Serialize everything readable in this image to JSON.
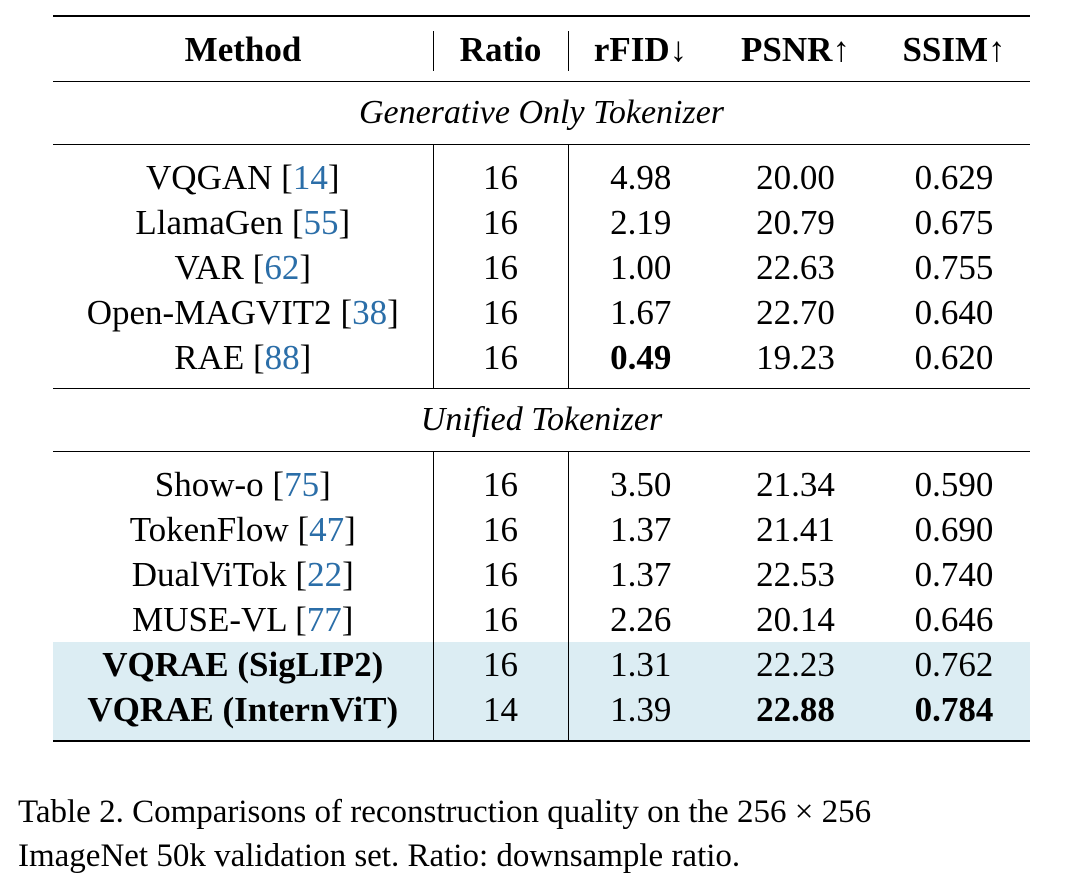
{
  "table": {
    "headers": [
      "Method",
      "Ratio",
      "rFID↓",
      "PSNR↑",
      "SSIM↑"
    ],
    "sections": [
      {
        "title": "Generative Only Tokenizer",
        "rows": [
          {
            "method": "VQGAN",
            "ref": "14",
            "ratio": "16",
            "rfid": "4.98",
            "psnr": "20.00",
            "ssim": "0.629"
          },
          {
            "method": "LlamaGen",
            "ref": "55",
            "ratio": "16",
            "rfid": "2.19",
            "psnr": "20.79",
            "ssim": "0.675"
          },
          {
            "method": "VAR",
            "ref": "62",
            "ratio": "16",
            "rfid": "1.00",
            "psnr": "22.63",
            "ssim": "0.755"
          },
          {
            "method": "Open-MAGVIT2",
            "ref": "38",
            "ratio": "16",
            "rfid": "1.67",
            "psnr": "22.70",
            "ssim": "0.640"
          },
          {
            "method": "RAE",
            "ref": "88",
            "ratio": "16",
            "rfid": "0.49",
            "psnr": "19.23",
            "ssim": "0.620"
          }
        ]
      },
      {
        "title": "Unified Tokenizer",
        "rows": [
          {
            "method": "Show-o",
            "ref": "75",
            "ratio": "16",
            "rfid": "3.50",
            "psnr": "21.34",
            "ssim": "0.590"
          },
          {
            "method": "TokenFlow",
            "ref": "47",
            "ratio": "16",
            "rfid": "1.37",
            "psnr": "21.41",
            "ssim": "0.690"
          },
          {
            "method": "DualViTok",
            "ref": "22",
            "ratio": "16",
            "rfid": "1.37",
            "psnr": "22.53",
            "ssim": "0.740"
          },
          {
            "method": "MUSE-VL",
            "ref": "77",
            "ratio": "16",
            "rfid": "2.26",
            "psnr": "20.14",
            "ssim": "0.646"
          },
          {
            "method": "VQRAE (SigLIP2)",
            "ref": "",
            "ratio": "16",
            "rfid": "1.31",
            "psnr": "22.23",
            "ssim": "0.762"
          },
          {
            "method": "VQRAE (InternViT)",
            "ref": "",
            "ratio": "14",
            "rfid": "1.39",
            "psnr": "22.88",
            "ssim": "0.784"
          }
        ]
      }
    ]
  },
  "caption": {
    "line1": "Table 2. Comparisons of reconstruction quality on the 256 × 256",
    "line2": "ImageNet 50k validation set. Ratio: downsample ratio."
  },
  "colors": {
    "highlight": "#dcedf3",
    "ref_link": "#2b6ea8"
  }
}
